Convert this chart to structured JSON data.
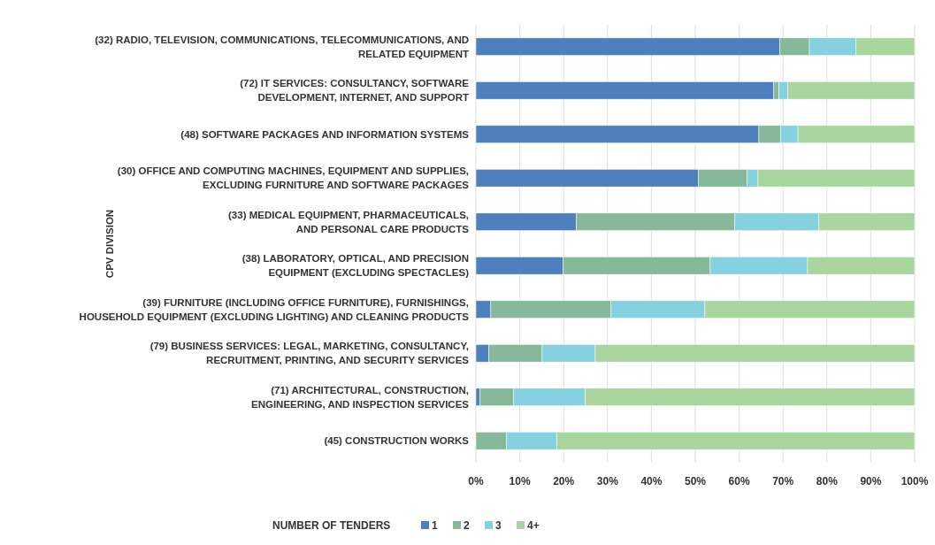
{
  "chart_data": {
    "type": "bar",
    "orientation": "horizontal",
    "stacked": true,
    "ylabel": "CPV DIVISION",
    "legend_title": "NUMBER OF TENDERS",
    "legend": "bottom",
    "grid": "x",
    "categories": [
      "(32) RADIO, TELEVISION, COMMUNICATIONS, TELECOMMUNICATIONS, AND RELATED EQUIPMENT",
      "(72) IT SERVICES: CONSULTANCY, SOFTWARE DEVELOPMENT, INTERNET, AND SUPPORT",
      "(48) SOFTWARE PACKAGES AND INFORMATION SYSTEMS",
      "(30) OFFICE AND COMPUTING MACHINES, EQUIPMENT AND SUPPLIES, EXCLUDING FURNITURE AND SOFTWARE PACKAGES",
      "(33) MEDICAL EQUIPMENT, PHARMACEUTICALS, AND PERSONAL CARE PRODUCTS",
      "(38) LABORATORY, OPTICAL, AND PRECISION EQUIPMENT (EXCLUDING SPECTACLES)",
      "(39) FURNITURE (INCLUDING OFFICE FURNITURE), FURNISHINGS, HOUSEHOLD EQUIPMENT (EXCLUDING LIGHTING) AND CLEANING PRODUCTS",
      "(79) BUSINESS SERVICES: LEGAL, MARKETING, CONSULTANCY, RECRUITMENT, PRINTING, AND SECURITY SERVICES",
      "(71) ARCHITECTURAL, CONSTRUCTION, ENGINEERING, AND INSPECTION SERVICES",
      "(45) CONSTRUCTION WORKS"
    ],
    "xlim": [
      0,
      100
    ],
    "xticks": [
      {
        "value": 0,
        "label": "0%"
      },
      {
        "value": 10,
        "label": "10%"
      },
      {
        "value": 20,
        "label": "20%"
      },
      {
        "value": 30,
        "label": "30%"
      },
      {
        "value": 40,
        "label": "40%"
      },
      {
        "value": 50,
        "label": "50%"
      },
      {
        "value": 60,
        "label": "60%"
      },
      {
        "value": 70,
        "label": "70%"
      },
      {
        "value": 80,
        "label": "80%"
      },
      {
        "value": 90,
        "label": "90%"
      },
      {
        "value": 100,
        "label": "100%"
      }
    ],
    "series": [
      {
        "name": "1",
        "color": "#4d80bd",
        "values": [
          69.3,
          67.9,
          64.5,
          50.7,
          22.9,
          19.9,
          3.4,
          2.9,
          0.9,
          0
        ]
      },
      {
        "name": "2",
        "color": "#86b999",
        "values": [
          6.7,
          1.2,
          5.0,
          11.1,
          36.1,
          33.5,
          27.4,
          12.2,
          7.7,
          7.0
        ]
      },
      {
        "name": "3",
        "color": "#86d1e0",
        "values": [
          10.6,
          2.0,
          3.9,
          2.5,
          19.2,
          22.2,
          21.4,
          12.1,
          16.3,
          11.5
        ]
      },
      {
        "name": "4+",
        "color": "#a9d59f",
        "values": [
          13.4,
          28.9,
          26.6,
          35.7,
          21.8,
          24.4,
          47.8,
          72.8,
          75.1,
          81.5
        ]
      }
    ]
  }
}
